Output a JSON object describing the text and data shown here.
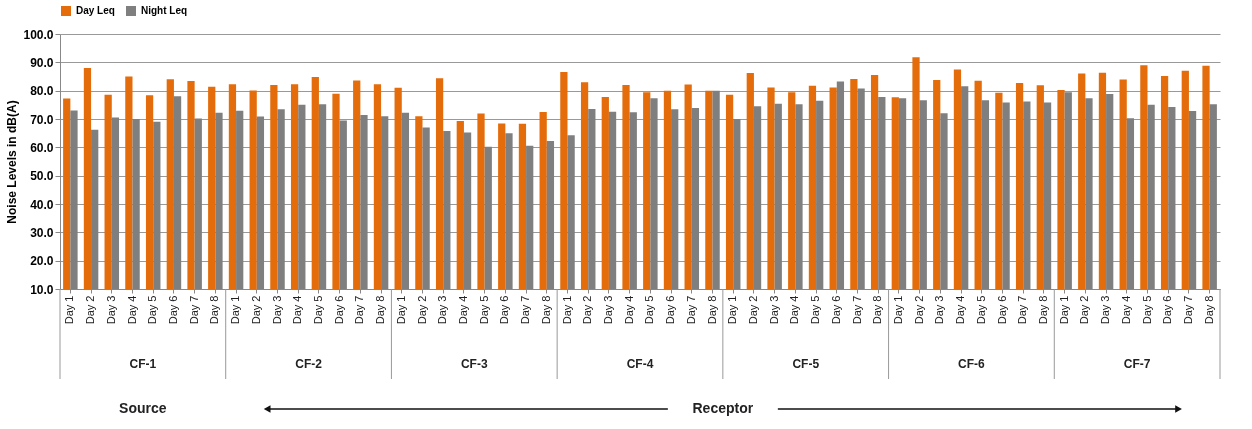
{
  "chart_data": {
    "type": "bar",
    "ylabel": "Noise Levels in dB(A)",
    "categories": [
      "Day 1",
      "Day 2",
      "Day 3",
      "Day 4",
      "Day 5",
      "Day 6",
      "Day 7",
      "Day 8",
      "Day 1",
      "Day 2",
      "Day 3",
      "Day 4",
      "Day 5",
      "Day 6",
      "Day 7",
      "Day 8",
      "Day 1",
      "Day 2",
      "Day 3",
      "Day 4",
      "Day 5",
      "Day 6",
      "Day 7",
      "Day 8",
      "Day 1",
      "Day 2",
      "Day 3",
      "Day 4",
      "Day 5",
      "Day 6",
      "Day 7",
      "Day 8",
      "Day 1",
      "Day 2",
      "Day 3",
      "Day 4",
      "Day 5",
      "Day 6",
      "Day 7",
      "Day 8",
      "Day 1",
      "Day 2",
      "Day 3",
      "Day 4",
      "Day 5",
      "Day 6",
      "Day 7",
      "Day 8",
      "Day 1",
      "Day 2",
      "Day 3",
      "Day 4",
      "Day 5",
      "Day 6",
      "Day 7",
      "Day 8"
    ],
    "series": [
      {
        "name": "Day Leq",
        "color": "#e46c0a",
        "values": [
          77.2,
          88.0,
          78.6,
          85.0,
          78.4,
          84.0,
          83.4,
          81.4,
          82.3,
          80.1,
          82.0,
          82.3,
          84.8,
          78.9,
          83.6,
          82.3,
          81.0,
          71.0,
          84.4,
          69.3,
          71.9,
          68.4,
          68.3,
          72.5,
          86.6,
          83.0,
          77.8,
          82.0,
          79.4,
          80.0,
          82.2,
          80.0,
          78.6,
          86.2,
          81.1,
          79.4,
          81.7,
          81.1,
          84.1,
          85.5,
          77.7,
          91.8,
          83.8,
          87.5,
          83.5,
          79.3,
          82.7,
          81.9,
          80.2,
          86.1,
          86.3,
          83.9,
          89.0,
          85.2,
          87.0,
          88.8
        ]
      },
      {
        "name": "Night Leq",
        "color": "#7f7f7f",
        "values": [
          73.0,
          66.2,
          70.5,
          70.0,
          69.0,
          78.0,
          70.2,
          72.2,
          72.9,
          70.9,
          73.4,
          75.0,
          75.2,
          69.5,
          71.4,
          71.0,
          72.2,
          67.0,
          65.8,
          65.2,
          60.2,
          65.0,
          60.6,
          62.2,
          64.3,
          73.5,
          72.6,
          72.4,
          77.3,
          73.4,
          73.9,
          80.0,
          70.0,
          74.5,
          75.4,
          75.2,
          76.4,
          83.2,
          80.8,
          77.8,
          77.3,
          76.6,
          72.0,
          81.6,
          76.6,
          75.8,
          76.2,
          75.8,
          79.4,
          77.3,
          78.8,
          70.3,
          75.0,
          74.2,
          72.8,
          75.2
        ]
      }
    ],
    "ylim": [
      10,
      100
    ],
    "yticks": [
      {
        "value": 10,
        "label": "10.0"
      },
      {
        "value": 20,
        "label": "20.0"
      },
      {
        "value": 30,
        "label": "30.0"
      },
      {
        "value": 40,
        "label": "40.0"
      },
      {
        "value": 50,
        "label": "50.0"
      },
      {
        "value": 60,
        "label": "60.0"
      },
      {
        "value": 70,
        "label": "70.0"
      },
      {
        "value": 80,
        "label": "80.0"
      },
      {
        "value": 90,
        "label": "90.0"
      },
      {
        "value": 100,
        "label": "100.0"
      }
    ],
    "grid": "y",
    "legend": "top",
    "annotations": [
      "CF-1",
      "CF-2",
      "CF-3",
      "CF-4",
      "CF-5",
      "CF-6",
      "CF-7",
      "Source",
      "Receptor"
    ]
  }
}
